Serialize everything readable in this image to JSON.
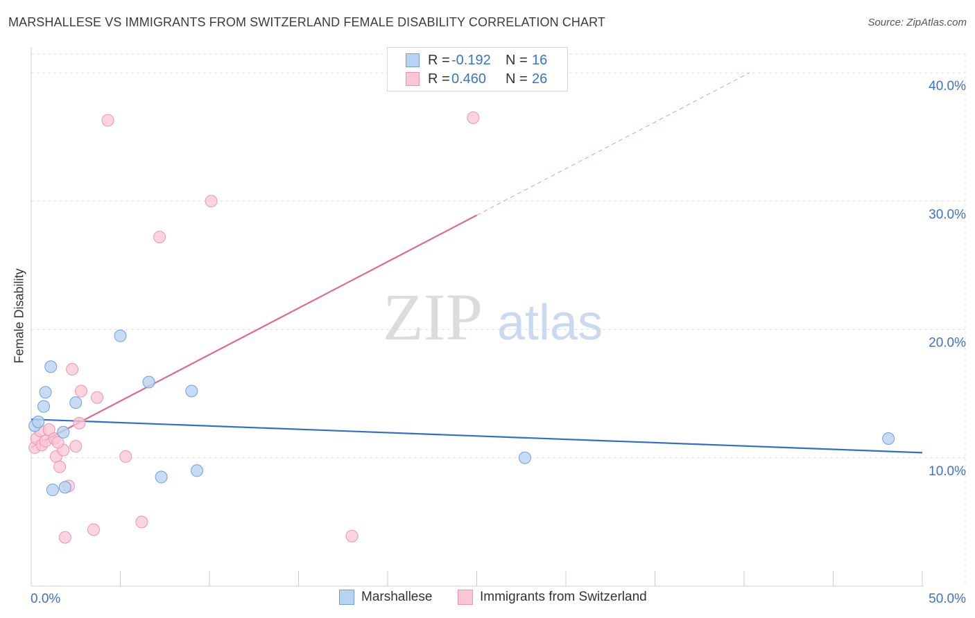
{
  "title": "MARSHALLESE VS IMMIGRANTS FROM SWITZERLAND FEMALE DISABILITY CORRELATION CHART",
  "source": "Source: ZipAtlas.com",
  "watermark": {
    "zip": "ZIP",
    "atlas": "atlas"
  },
  "legend": {
    "r_label": "R =",
    "n_label": "N =",
    "rows": [
      {
        "r": "-0.192",
        "n": "16"
      },
      {
        "r": "0.460",
        "n": "26"
      }
    ]
  },
  "colors": {
    "blue_line": "#2e6fc9",
    "blue_fill": "#b8d3f2",
    "blue_stroke": "#6d9fdb",
    "pink_line": "#e0688f",
    "pink_fill": "#f9c6d4",
    "pink_stroke": "#ec94b0",
    "tick_label": "#3a72c4",
    "grid": "#dddddd"
  },
  "chart_data": {
    "type": "scatter",
    "title": "MARSHALLESE VS IMMIGRANTS FROM SWITZERLAND FEMALE DISABILITY CORRELATION CHART",
    "xlabel": "",
    "ylabel": "Female Disability",
    "xlim": [
      0,
      50
    ],
    "ylim": [
      0,
      42
    ],
    "x_tick_labels": [
      {
        "value": 0,
        "label": "0.0%"
      },
      {
        "value": 50,
        "label": "50.0%"
      }
    ],
    "y_ticks": [
      {
        "value": 10,
        "label": "10.0%"
      },
      {
        "value": 20,
        "label": "20.0%"
      },
      {
        "value": 30,
        "label": "30.0%"
      },
      {
        "value": 40,
        "label": "40.0%"
      }
    ],
    "x_minor_ticks": [
      0,
      5,
      10,
      15,
      20,
      25,
      30,
      35,
      40,
      45,
      50
    ],
    "series": [
      {
        "name": "Marshallese",
        "points": [
          {
            "x": 0.2,
            "y": 12.5
          },
          {
            "x": 0.4,
            "y": 12.8
          },
          {
            "x": 0.7,
            "y": 14.0
          },
          {
            "x": 0.8,
            "y": 15.1
          },
          {
            "x": 1.1,
            "y": 17.1
          },
          {
            "x": 1.2,
            "y": 7.5
          },
          {
            "x": 1.8,
            "y": 12.0
          },
          {
            "x": 1.9,
            "y": 7.7
          },
          {
            "x": 2.5,
            "y": 14.3
          },
          {
            "x": 5.0,
            "y": 19.5
          },
          {
            "x": 6.6,
            "y": 15.9
          },
          {
            "x": 7.3,
            "y": 8.5
          },
          {
            "x": 9.0,
            "y": 15.2
          },
          {
            "x": 9.3,
            "y": 9.0
          },
          {
            "x": 27.7,
            "y": 10.0
          },
          {
            "x": 48.1,
            "y": 11.5
          }
        ],
        "trend": {
          "x1": 0,
          "y1": 13.0,
          "x2": 50,
          "y2": 10.4
        }
      },
      {
        "name": "Immigrants from Switzerland",
        "points": [
          {
            "x": 0.2,
            "y": 10.8
          },
          {
            "x": 0.3,
            "y": 11.5
          },
          {
            "x": 0.5,
            "y": 12.1
          },
          {
            "x": 0.6,
            "y": 11.0
          },
          {
            "x": 0.8,
            "y": 11.3
          },
          {
            "x": 1.0,
            "y": 12.2
          },
          {
            "x": 1.3,
            "y": 11.5
          },
          {
            "x": 1.4,
            "y": 10.1
          },
          {
            "x": 1.6,
            "y": 9.3
          },
          {
            "x": 1.8,
            "y": 10.6
          },
          {
            "x": 1.9,
            "y": 3.8
          },
          {
            "x": 2.1,
            "y": 7.8
          },
          {
            "x": 2.3,
            "y": 16.9
          },
          {
            "x": 2.5,
            "y": 10.9
          },
          {
            "x": 2.7,
            "y": 12.7
          },
          {
            "x": 2.8,
            "y": 15.2
          },
          {
            "x": 3.5,
            "y": 4.4
          },
          {
            "x": 3.7,
            "y": 14.7
          },
          {
            "x": 4.3,
            "y": 36.3
          },
          {
            "x": 5.3,
            "y": 10.1
          },
          {
            "x": 6.2,
            "y": 5.0
          },
          {
            "x": 7.2,
            "y": 27.2
          },
          {
            "x": 10.1,
            "y": 30.0
          },
          {
            "x": 18.0,
            "y": 3.9
          },
          {
            "x": 24.8,
            "y": 36.5
          },
          {
            "x": 1.5,
            "y": 11.2
          }
        ],
        "trend": {
          "x1": 0,
          "y1": 10.8,
          "x2": 25,
          "y2": 28.9
        },
        "trend_dashed": {
          "x1": 25,
          "y1": 28.9,
          "x2": 40.3,
          "y2": 40.0
        }
      }
    ]
  }
}
